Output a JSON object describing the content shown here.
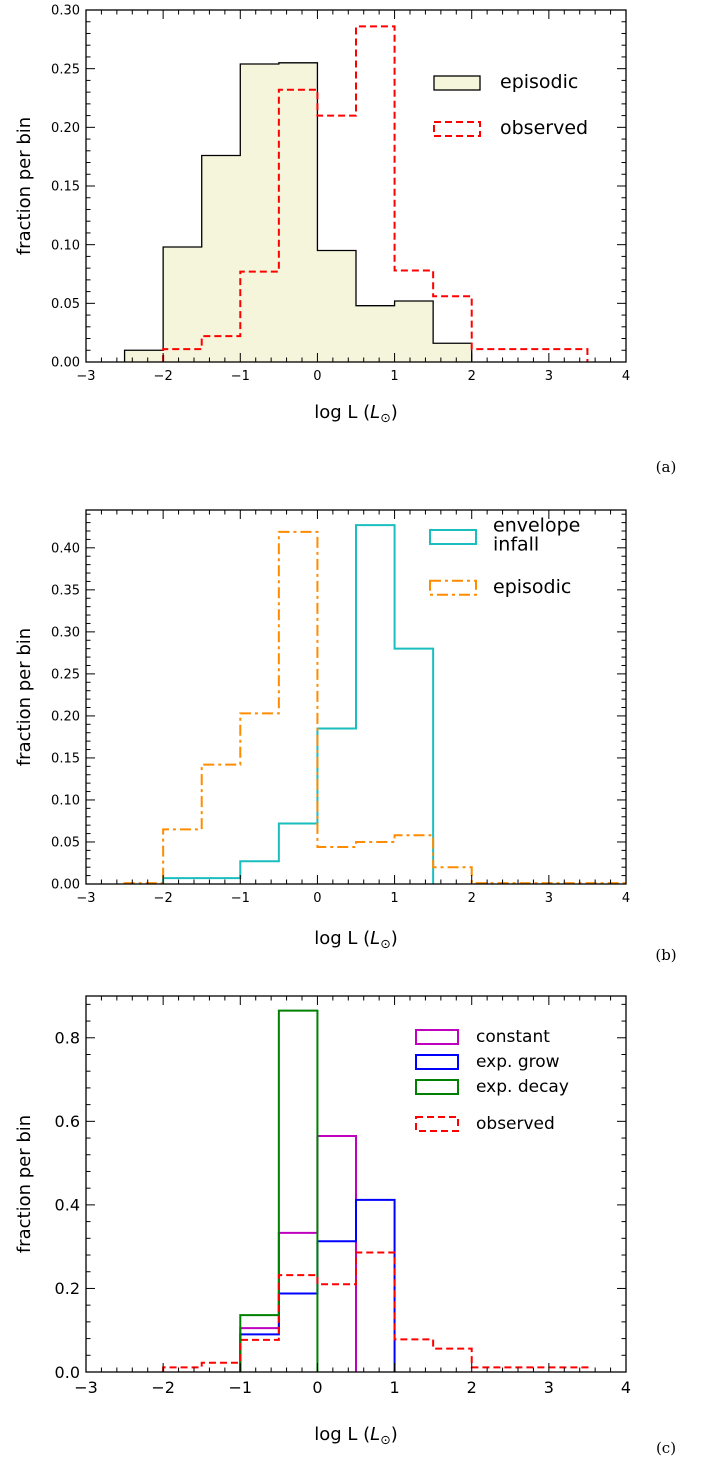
{
  "chart_data": [
    {
      "type": "bar",
      "panel_label": "(a)",
      "xlabel": "log L (",
      "xlabel_sym": "L",
      "xlabel_sub": "⊙",
      "xlabel_close": ")",
      "ylabel": "fraction per bin",
      "xlim": [
        -3,
        4
      ],
      "ylim": [
        0,
        0.3
      ],
      "xticks": [
        -3,
        -2,
        -1,
        0,
        1,
        2,
        3,
        4
      ],
      "xtick_labels": [
        "−3",
        "−2",
        "−1",
        "0",
        "1",
        "2",
        "3",
        "4"
      ],
      "yticks": [
        0,
        0.05,
        0.1,
        0.15,
        0.2,
        0.25,
        0.3
      ],
      "ytick_labels": [
        "0.00",
        "0.05",
        "0.10",
        "0.15",
        "0.20",
        "0.25",
        "0.30"
      ],
      "bin_edges": [
        -3,
        -2.5,
        -2,
        -1.5,
        -1,
        -0.5,
        0,
        0.5,
        1,
        1.5,
        2,
        2.5,
        3,
        3.5,
        4
      ],
      "legend_position": "upper-right",
      "series": [
        {
          "name": "episodic",
          "style": "filled",
          "color": "#000000",
          "fill": "#f5f5dc",
          "values": [
            0,
            0.01,
            0.098,
            0.176,
            0.254,
            0.255,
            0.095,
            0.048,
            0.052,
            0.016,
            0,
            0,
            0,
            0
          ]
        },
        {
          "name": "observed",
          "style": "dashed",
          "color": "#ff0000",
          "values": [
            0,
            0,
            0.011,
            0.022,
            0.077,
            0.232,
            0.21,
            0.286,
            0.078,
            0.056,
            0.011,
            0.011,
            0.011,
            0
          ]
        }
      ]
    },
    {
      "type": "bar",
      "panel_label": "(b)",
      "xlabel": "log L (",
      "xlabel_sym": "L",
      "xlabel_sub": "⊙",
      "xlabel_close": ")",
      "ylabel": "fraction per bin",
      "xlim": [
        -3,
        4
      ],
      "ylim": [
        0,
        0.445
      ],
      "xticks": [
        -3,
        -2,
        -1,
        0,
        1,
        2,
        3,
        4
      ],
      "xtick_labels": [
        "−3",
        "−2",
        "−1",
        "0",
        "1",
        "2",
        "3",
        "4"
      ],
      "yticks": [
        0,
        0.05,
        0.1,
        0.15,
        0.2,
        0.25,
        0.3,
        0.35,
        0.4
      ],
      "ytick_labels": [
        "0.00",
        "0.05",
        "0.10",
        "0.15",
        "0.20",
        "0.25",
        "0.30",
        "0.35",
        "0.40"
      ],
      "bin_edges": [
        -3,
        -2.5,
        -2,
        -1.5,
        -1,
        -0.5,
        0,
        0.5,
        1,
        1.5,
        2,
        2.5,
        3,
        3.5,
        4
      ],
      "legend_position": "upper-right",
      "series": [
        {
          "name": "envelope\ninfall",
          "style": "solid",
          "color": "#1abebe",
          "values": [
            0,
            0,
            0.007,
            0.007,
            0.027,
            0.072,
            0.185,
            0.427,
            0.28,
            0,
            0,
            0,
            0,
            0
          ]
        },
        {
          "name": "episodic",
          "style": "dashdot",
          "color": "#ff8c00",
          "values": [
            0,
            0.001,
            0.065,
            0.142,
            0.203,
            0.419,
            0.044,
            0.05,
            0.058,
            0.02,
            0.001,
            0.001,
            0.001,
            0.001
          ]
        }
      ]
    },
    {
      "type": "bar",
      "panel_label": "(c)",
      "xlabel": "log L (",
      "xlabel_sym": "L",
      "xlabel_sub": "⊙",
      "xlabel_close": ")",
      "ylabel": "fraction per bin",
      "xlim": [
        -3,
        4
      ],
      "ylim": [
        0,
        0.9
      ],
      "xticks": [
        -3,
        -2,
        -1,
        0,
        1,
        2,
        3,
        4
      ],
      "xtick_labels": [
        "−3",
        "−2",
        "−1",
        "0",
        "1",
        "2",
        "3",
        "4"
      ],
      "yticks": [
        0,
        0.2,
        0.4,
        0.6,
        0.8
      ],
      "ytick_labels": [
        "0.0",
        "0.2",
        "0.4",
        "0.6",
        "0.8"
      ],
      "bin_edges": [
        -3,
        -2.5,
        -2,
        -1.5,
        -1,
        -0.5,
        0,
        0.5,
        1,
        1.5,
        2,
        2.5,
        3,
        3.5,
        4
      ],
      "legend_position": "upper-right",
      "series": [
        {
          "name": "constant",
          "style": "solid",
          "color": "#bf00bf",
          "values": [
            0,
            0,
            0,
            0,
            0.105,
            0.333,
            0.565,
            0,
            0,
            0,
            0,
            0,
            0,
            0
          ]
        },
        {
          "name": "exp. grow",
          "style": "solid",
          "color": "#0000ff",
          "values": [
            0,
            0,
            0,
            0,
            0.09,
            0.188,
            0.313,
            0.412,
            0,
            0,
            0,
            0,
            0,
            0
          ]
        },
        {
          "name": "exp. decay",
          "style": "solid",
          "color": "#008000",
          "values": [
            0,
            0,
            0,
            0,
            0.136,
            0.865,
            0,
            0,
            0,
            0,
            0,
            0,
            0,
            0
          ]
        },
        {
          "name": "observed",
          "style": "dashed",
          "color": "#ff0000",
          "values": [
            0,
            0,
            0.011,
            0.022,
            0.077,
            0.232,
            0.21,
            0.286,
            0.078,
            0.056,
            0.011,
            0.011,
            0.011,
            0
          ]
        }
      ]
    }
  ]
}
